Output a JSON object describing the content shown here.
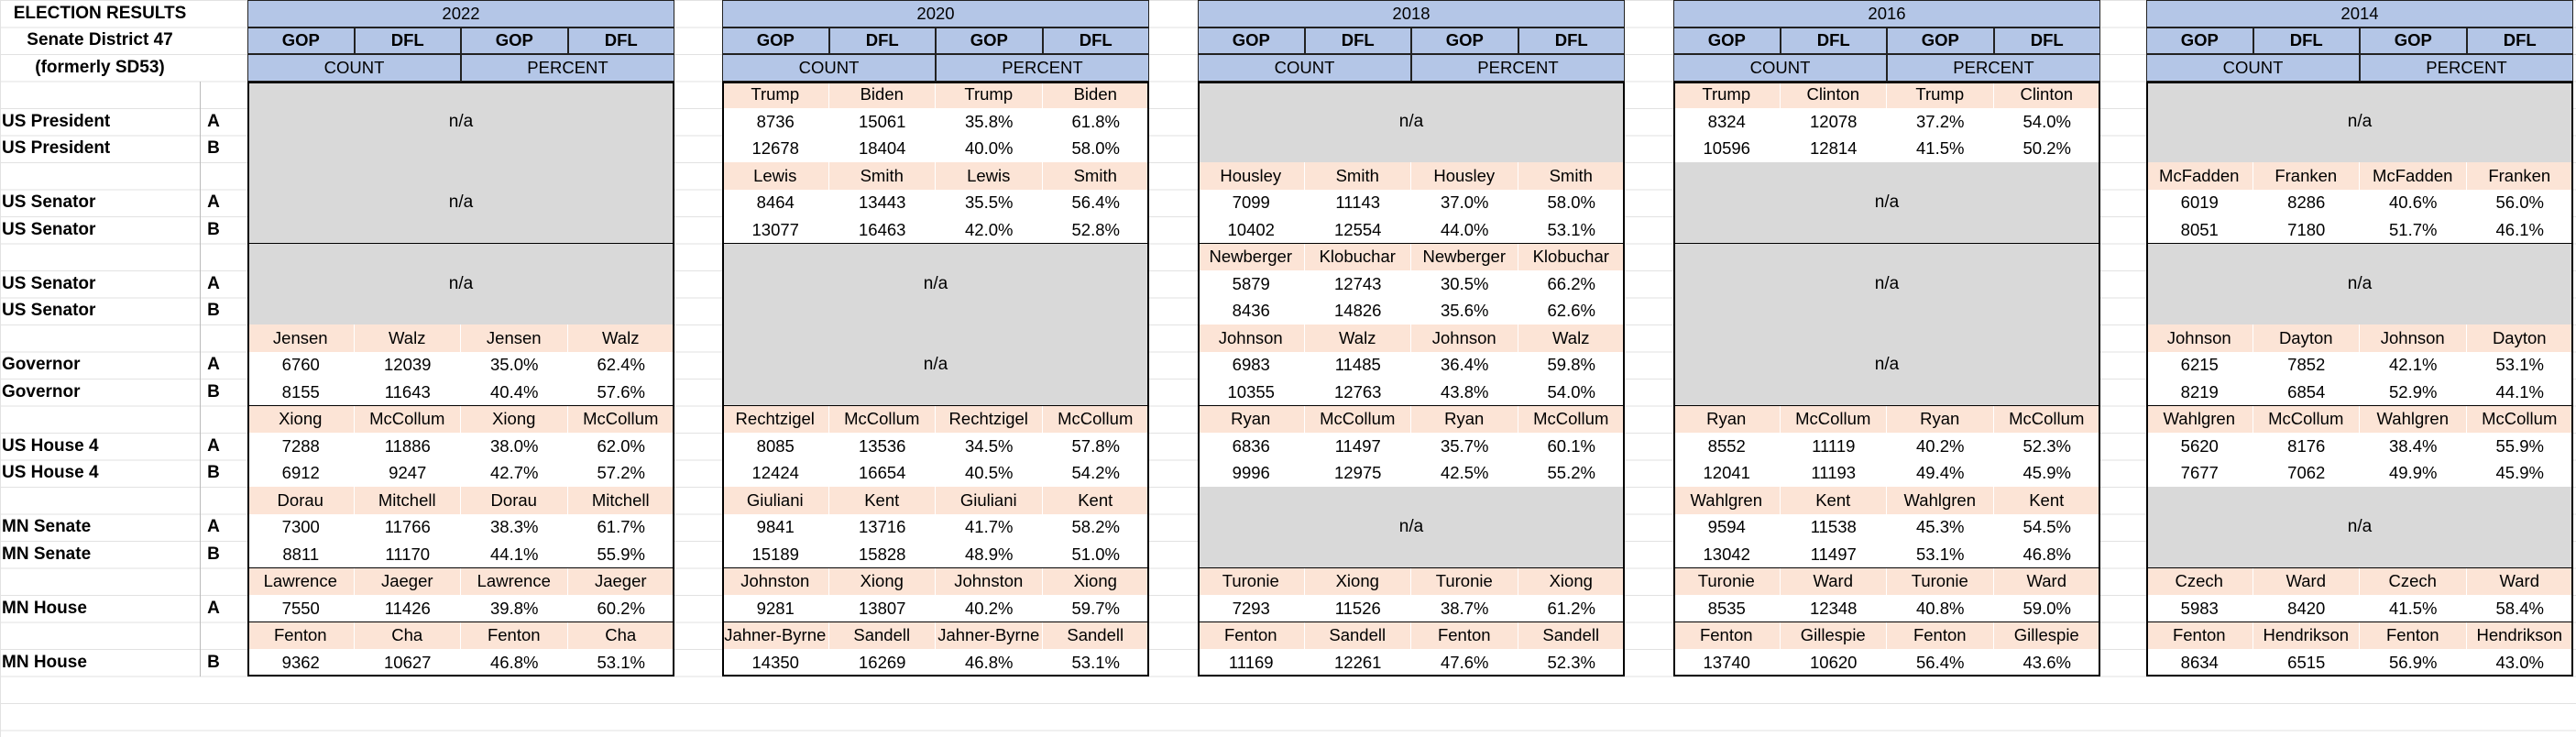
{
  "title": [
    "ELECTION RESULTS",
    "Senate District 47",
    "(formerly SD53)"
  ],
  "col_headers": {
    "gop": "GOP",
    "dfl": "DFL",
    "count": "COUNT",
    "percent": "PERCENT",
    "na": "n/a"
  },
  "row_labels": [
    {
      "office": "US President",
      "sub": "A"
    },
    {
      "office": "US President",
      "sub": "B"
    },
    {
      "office": "US Senator",
      "sub": "A"
    },
    {
      "office": "US Senator",
      "sub": "B"
    },
    {
      "office": "US Senator",
      "sub": "A"
    },
    {
      "office": "US Senator",
      "sub": "B"
    },
    {
      "office": "Governor",
      "sub": "A"
    },
    {
      "office": "Governor",
      "sub": "B"
    },
    {
      "office": "US House 4",
      "sub": "A"
    },
    {
      "office": "US House 4",
      "sub": "B"
    },
    {
      "office": "MN Senate",
      "sub": "A"
    },
    {
      "office": "MN Senate",
      "sub": "B"
    },
    {
      "office": "MN House",
      "sub": "A"
    },
    {
      "office": "MN House",
      "sub": "B"
    }
  ],
  "years": [
    {
      "year": "2022",
      "races": [
        null,
        null,
        null,
        {
          "names": [
            "Jensen",
            "Walz",
            "Jensen",
            "Walz"
          ],
          "rows": [
            [
              "6760",
              "12039",
              "35.0%",
              "62.4%"
            ],
            [
              "8155",
              "11643",
              "40.4%",
              "57.6%"
            ]
          ]
        },
        {
          "names": [
            "Xiong",
            "McCollum",
            "Xiong",
            "McCollum"
          ],
          "rows": [
            [
              "7288",
              "11886",
              "38.0%",
              "62.0%"
            ],
            [
              "6912",
              "9247",
              "42.7%",
              "57.2%"
            ]
          ]
        },
        {
          "names": [
            "Dorau",
            "Mitchell",
            "Dorau",
            "Mitchell"
          ],
          "rows": [
            [
              "7300",
              "11766",
              "38.3%",
              "61.7%"
            ],
            [
              "8811",
              "11170",
              "44.1%",
              "55.9%"
            ]
          ]
        },
        {
          "names": [
            "Lawrence",
            "Jaeger",
            "Lawrence",
            "Jaeger"
          ],
          "rows": [
            [
              "7550",
              "11426",
              "39.8%",
              "60.2%"
            ]
          ]
        },
        {
          "names": [
            "Fenton",
            "Cha",
            "Fenton",
            "Cha"
          ],
          "rows": [
            [
              "9362",
              "10627",
              "46.8%",
              "53.1%"
            ]
          ]
        }
      ]
    },
    {
      "year": "2020",
      "races": [
        {
          "names": [
            "Trump",
            "Biden",
            "Trump",
            "Biden"
          ],
          "rows": [
            [
              "8736",
              "15061",
              "35.8%",
              "61.8%"
            ],
            [
              "12678",
              "18404",
              "40.0%",
              "58.0%"
            ]
          ]
        },
        {
          "names": [
            "Lewis",
            "Smith",
            "Lewis",
            "Smith"
          ],
          "rows": [
            [
              "8464",
              "13443",
              "35.5%",
              "56.4%"
            ],
            [
              "13077",
              "16463",
              "42.0%",
              "52.8%"
            ]
          ]
        },
        null,
        null,
        {
          "names": [
            "Rechtzigel",
            "McCollum",
            "Rechtzigel",
            "McCollum"
          ],
          "rows": [
            [
              "8085",
              "13536",
              "34.5%",
              "57.8%"
            ],
            [
              "12424",
              "16654",
              "40.5%",
              "54.2%"
            ]
          ]
        },
        {
          "names": [
            "Giuliani",
            "Kent",
            "Giuliani",
            "Kent"
          ],
          "rows": [
            [
              "9841",
              "13716",
              "41.7%",
              "58.2%"
            ],
            [
              "15189",
              "15828",
              "48.9%",
              "51.0%"
            ]
          ]
        },
        {
          "names": [
            "Johnston",
            "Xiong",
            "Johnston",
            "Xiong"
          ],
          "rows": [
            [
              "9281",
              "13807",
              "40.2%",
              "59.7%"
            ]
          ]
        },
        {
          "names": [
            "Jahner-Byrne",
            "Sandell",
            "Jahner-Byrne",
            "Sandell"
          ],
          "rows": [
            [
              "14350",
              "16269",
              "46.8%",
              "53.1%"
            ]
          ]
        }
      ]
    },
    {
      "year": "2018",
      "races": [
        null,
        {
          "names": [
            "Housley",
            "Smith",
            "Housley",
            "Smith"
          ],
          "rows": [
            [
              "7099",
              "11143",
              "37.0%",
              "58.0%"
            ],
            [
              "10402",
              "12554",
              "44.0%",
              "53.1%"
            ]
          ]
        },
        {
          "names": [
            "Newberger",
            "Klobuchar",
            "Newberger",
            "Klobuchar"
          ],
          "rows": [
            [
              "5879",
              "12743",
              "30.5%",
              "66.2%"
            ],
            [
              "8436",
              "14826",
              "35.6%",
              "62.6%"
            ]
          ]
        },
        {
          "names": [
            "Johnson",
            "Walz",
            "Johnson",
            "Walz"
          ],
          "rows": [
            [
              "6983",
              "11485",
              "36.4%",
              "59.8%"
            ],
            [
              "10355",
              "12763",
              "43.8%",
              "54.0%"
            ]
          ]
        },
        {
          "names": [
            "Ryan",
            "McCollum",
            "Ryan",
            "McCollum"
          ],
          "rows": [
            [
              "6836",
              "11497",
              "35.7%",
              "60.1%"
            ],
            [
              "9996",
              "12975",
              "42.5%",
              "55.2%"
            ]
          ]
        },
        null,
        {
          "names": [
            "Turonie",
            "Xiong",
            "Turonie",
            "Xiong"
          ],
          "rows": [
            [
              "7293",
              "11526",
              "38.7%",
              "61.2%"
            ]
          ]
        },
        {
          "names": [
            "Fenton",
            "Sandell",
            "Fenton",
            "Sandell"
          ],
          "rows": [
            [
              "11169",
              "12261",
              "47.6%",
              "52.3%"
            ]
          ]
        }
      ]
    },
    {
      "year": "2016",
      "races": [
        {
          "names": [
            "Trump",
            "Clinton",
            "Trump",
            "Clinton"
          ],
          "rows": [
            [
              "8324",
              "12078",
              "37.2%",
              "54.0%"
            ],
            [
              "10596",
              "12814",
              "41.5%",
              "50.2%"
            ]
          ]
        },
        null,
        null,
        null,
        {
          "names": [
            "Ryan",
            "McCollum",
            "Ryan",
            "McCollum"
          ],
          "rows": [
            [
              "8552",
              "11119",
              "40.2%",
              "52.3%"
            ],
            [
              "12041",
              "11193",
              "49.4%",
              "45.9%"
            ]
          ]
        },
        {
          "names": [
            "Wahlgren",
            "Kent",
            "Wahlgren",
            "Kent"
          ],
          "rows": [
            [
              "9594",
              "11538",
              "45.3%",
              "54.5%"
            ],
            [
              "13042",
              "11497",
              "53.1%",
              "46.8%"
            ]
          ]
        },
        {
          "names": [
            "Turonie",
            "Ward",
            "Turonie",
            "Ward"
          ],
          "rows": [
            [
              "8535",
              "12348",
              "40.8%",
              "59.0%"
            ]
          ]
        },
        {
          "names": [
            "Fenton",
            "Gillespie",
            "Fenton",
            "Gillespie"
          ],
          "rows": [
            [
              "13740",
              "10620",
              "56.4%",
              "43.6%"
            ]
          ]
        }
      ]
    },
    {
      "year": "2014",
      "races": [
        null,
        {
          "names": [
            "McFadden",
            "Franken",
            "McFadden",
            "Franken"
          ],
          "rows": [
            [
              "6019",
              "8286",
              "40.6%",
              "56.0%"
            ],
            [
              "8051",
              "7180",
              "51.7%",
              "46.1%"
            ]
          ]
        },
        null,
        {
          "names": [
            "Johnson",
            "Dayton",
            "Johnson",
            "Dayton"
          ],
          "rows": [
            [
              "6215",
              "7852",
              "42.1%",
              "53.1%"
            ],
            [
              "8219",
              "6854",
              "52.9%",
              "44.1%"
            ]
          ]
        },
        {
          "names": [
            "Wahlgren",
            "McCollum",
            "Wahlgren",
            "McCollum"
          ],
          "rows": [
            [
              "5620",
              "8176",
              "38.4%",
              "55.9%"
            ],
            [
              "7677",
              "7062",
              "49.9%",
              "45.9%"
            ]
          ]
        },
        null,
        {
          "names": [
            "Czech",
            "Ward",
            "Czech",
            "Ward"
          ],
          "rows": [
            [
              "5983",
              "8420",
              "41.5%",
              "58.4%"
            ]
          ]
        },
        {
          "names": [
            "Fenton",
            "Hendrikson",
            "Fenton",
            "Hendrikson"
          ],
          "rows": [
            [
              "8634",
              "6515",
              "56.9%",
              "43.0%"
            ]
          ]
        }
      ]
    }
  ]
}
